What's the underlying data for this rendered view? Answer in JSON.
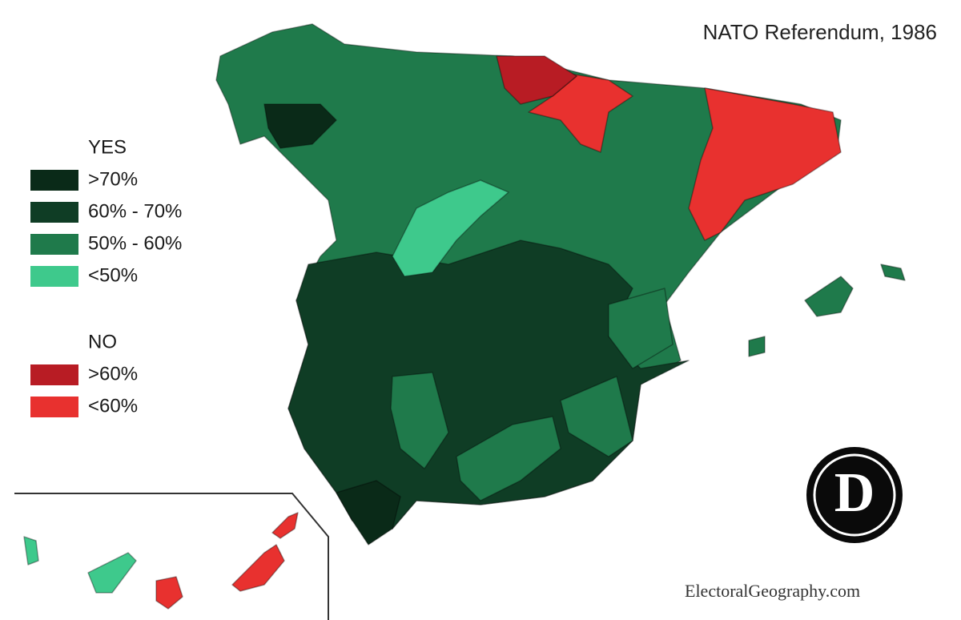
{
  "title": "NATO Referendum, 1986",
  "legend": {
    "yes": {
      "title": "YES",
      "items": [
        {
          "label": ">70%",
          "color": "#0a2a18"
        },
        {
          "label": "60% - 70%",
          "color": "#0f3d25"
        },
        {
          "label": "50% - 60%",
          "color": "#1f7a4b"
        },
        {
          "label": "<50%",
          "color": "#3ec98c"
        }
      ]
    },
    "no": {
      "title": "NO",
      "items": [
        {
          "label": ">60%",
          "color": "#b81c24"
        },
        {
          "label": "<60%",
          "color": "#e8312f"
        }
      ]
    }
  },
  "logo": "D",
  "watermark": "ElectoralGeography.com"
}
